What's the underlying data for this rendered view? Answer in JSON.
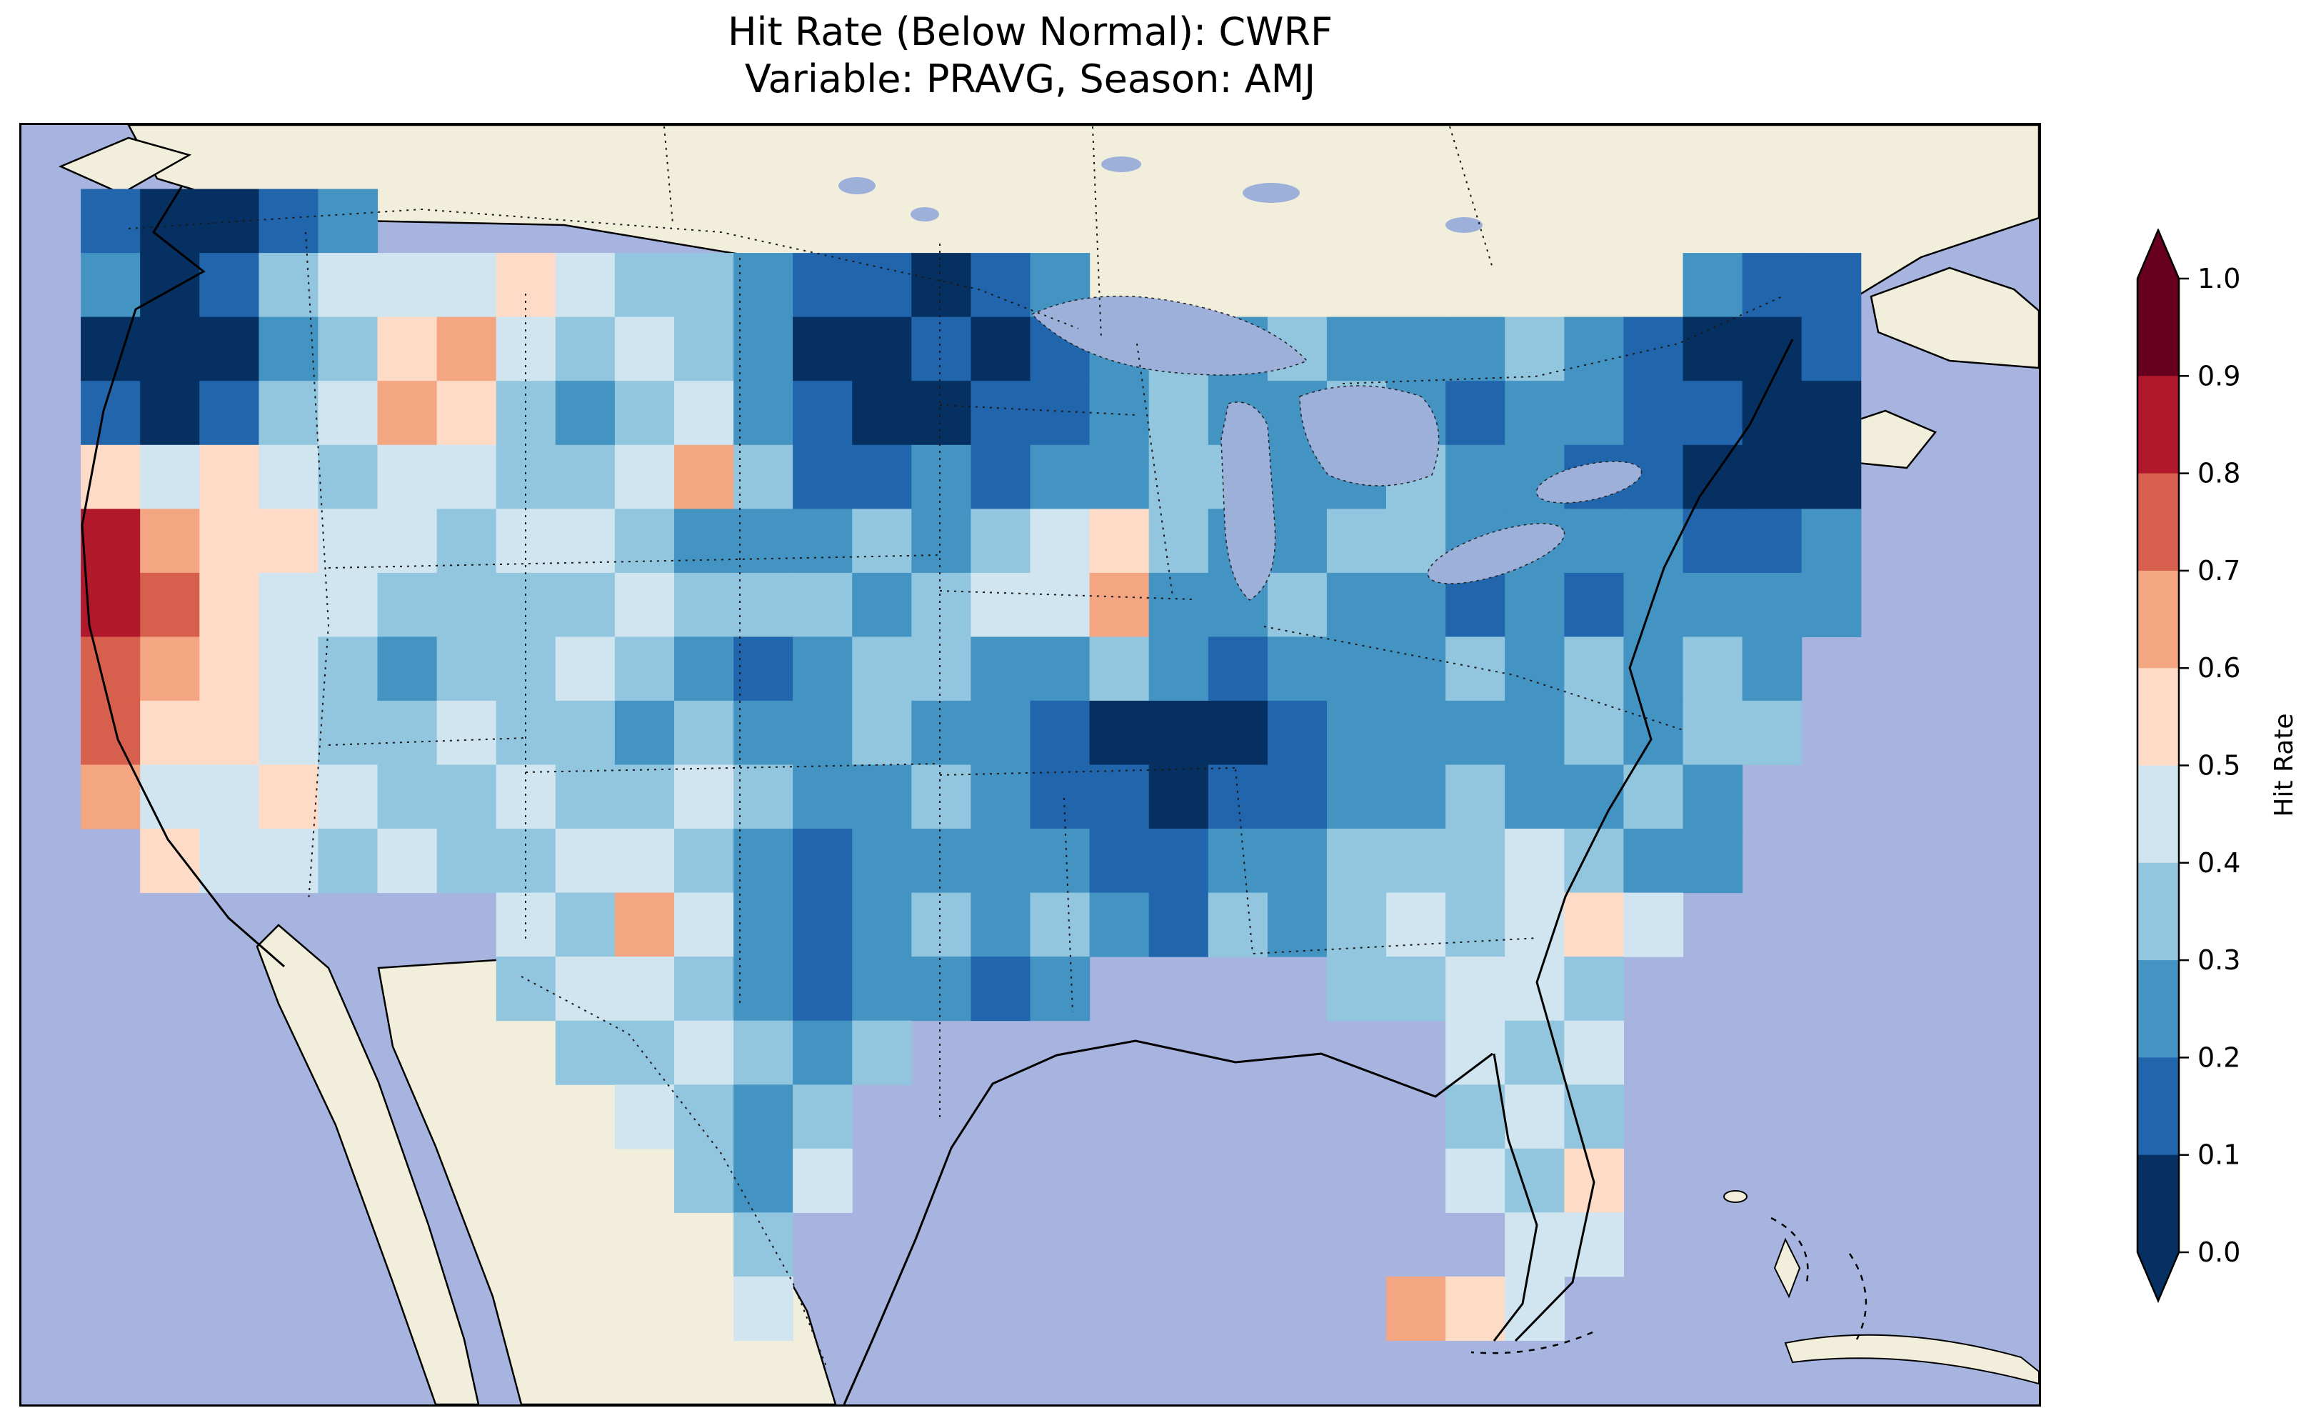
{
  "figure": {
    "title_line1": "Hit Rate (Below Normal): CWRF",
    "title_line2": "Variable: PRAVG, Season: AMJ"
  },
  "colorbar": {
    "label": "Hit Rate",
    "tick_labels_top_to_bottom": [
      "1.0",
      "0.9",
      "0.8",
      "0.7",
      "0.6",
      "0.5",
      "0.4",
      "0.3",
      "0.2",
      "0.1",
      "0.0"
    ],
    "segment_colors_bottom_to_top": [
      "#053061",
      "#2166ac",
      "#4393c3",
      "#92c5de",
      "#d1e5f0",
      "#fddbc7",
      "#f4a582",
      "#d6604d",
      "#b2182b",
      "#67001f"
    ],
    "over_arrow_color": "#67001f",
    "under_arrow_color": "#053061"
  },
  "map_colors": {
    "ocean": "#a6b4df",
    "land": "#f1eedb",
    "lake": "#9db0da"
  },
  "chart_data": {
    "type": "heatmap",
    "title": "Hit Rate (Below Normal): CWRF\nVariable: PRAVG, Season: AMJ",
    "metric": "Hit Rate (Below Normal)",
    "model": "CWRF",
    "variable": "PRAVG",
    "season": "AMJ",
    "colormap": "RdBu_r",
    "colorbar_label": "Hit Rate",
    "vmin": 0.0,
    "vmax": 1.0,
    "tick_step": 0.1,
    "region": "Contiguous United States",
    "grid_encoding": "20 rows x 34 cols covering the map axes; '.' = no data (ocean/foreign land); digit d = hit-rate bin, value = 0.05 + 0.1*d",
    "grid_rows": [
      "..................................",
      ".10012............................",
      ".20134445433211012..........211...",
      ".000235643432001012323222321001...",
      ".101346532342100112322321221100...",
      ".545434433463112122332232211000...",
      ".865544344322232345322332222112...",
      ".875443333433323446223221212222...",
      ".76543233432123322321222323232....",
      ".75543343323223221000122223233....",
      ".6445433433432232110112232232.....",
      "..544343344321222211223334322.....",
      "........43642123232132343454......",
      "........3443212212....33443.......",
      ".........334323.........434.......",
      "..........4323..........343.......",
      "...........324..........435.......",
      "............3............44.......",
      "............4..........654........",
      ".................................."
    ],
    "notable_features": "Low hit rates (dark blue, 0.0-0.2) over Pacific Northwest, Minnesota/Wisconsin, New England coast, Tennessee/Kentucky; high hit rates (red, 0.7-0.9) over central California; pale pink (0.5-0.7) over Nevada/Utah/Arizona and scattered plains spots"
  }
}
